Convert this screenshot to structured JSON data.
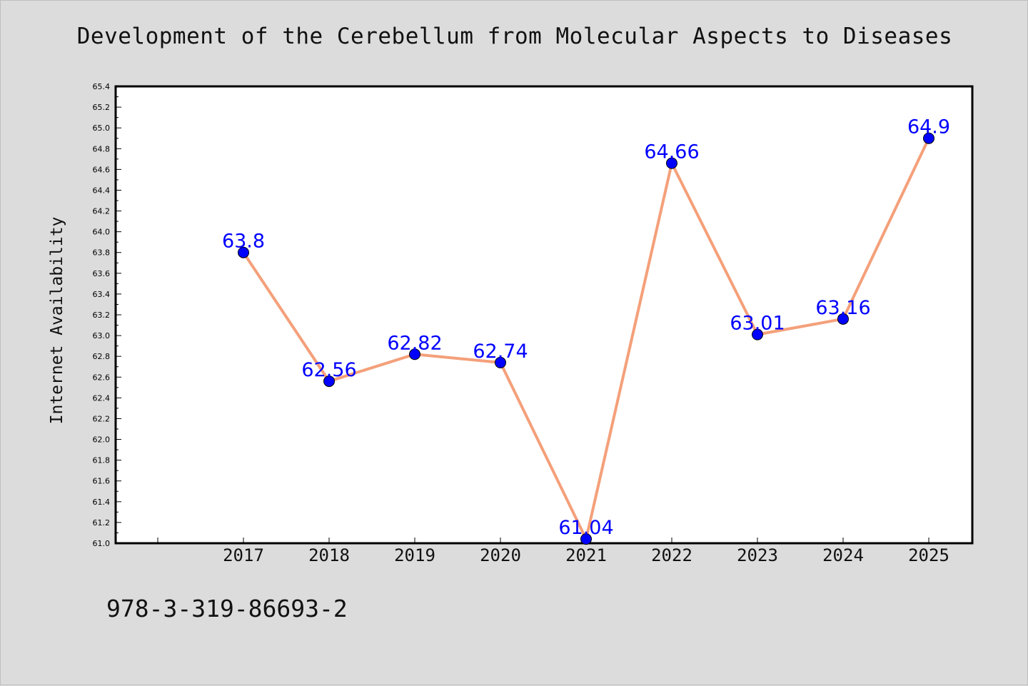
{
  "chart_data": {
    "type": "line",
    "title": "Development of the Cerebellum from Molecular Aspects to Diseases",
    "xlabel": "",
    "ylabel": "Internet Availability",
    "categories": [
      "2017",
      "2018",
      "2019",
      "2020",
      "2021",
      "2022",
      "2023",
      "2024",
      "2025"
    ],
    "series": [
      {
        "values": [
          63.8,
          62.56,
          62.82,
          62.74,
          61.04,
          64.66,
          63.01,
          63.16,
          64.9
        ],
        "data_labels": [
          "63.8",
          "62.56",
          "62.82",
          "62.74",
          "61.04",
          "64.66",
          "63.01",
          "63.16",
          "64.9"
        ]
      }
    ],
    "ylim": [
      61.0,
      65.4
    ],
    "yticks": [
      "61.0",
      "61.2",
      "61.4",
      "61.6",
      "61.8",
      "62.0",
      "62.2",
      "62.4",
      "62.6",
      "62.8",
      "63.0",
      "63.2",
      "63.4",
      "63.6",
      "63.8",
      "64.0",
      "64.2",
      "64.4",
      "64.6",
      "64.8",
      "65.0",
      "65.2",
      "65.4"
    ],
    "grid": false,
    "legend": "none",
    "colors": {
      "line": "#f4a07a",
      "marker": "#0000ff",
      "data_label": "#0000ff",
      "plot_background": "#ffffff",
      "page_background": "#dcdcdc"
    }
  },
  "footer": {
    "isbn": "978-3-319-86693-2"
  }
}
